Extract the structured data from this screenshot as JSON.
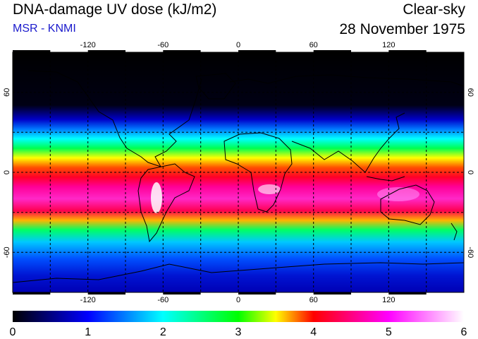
{
  "header": {
    "title": "DNA-damage UV dose (kJ/m2)",
    "source": "MSR - KNMI",
    "sky_condition": "Clear-sky",
    "date": "28 November 1975"
  },
  "map": {
    "projection": "equirectangular",
    "lon_range": [
      -180,
      180
    ],
    "lat_range": [
      -90,
      90
    ],
    "lon_ticks": [
      "-120",
      "-60",
      "0",
      "60",
      "120"
    ],
    "lat_ticks_left": [
      "60",
      "0",
      "-60"
    ],
    "lat_ticks_right": [
      "60",
      "0",
      "-60"
    ],
    "grid": "dashed, every 30 degrees",
    "coastlines": true
  },
  "colorbar": {
    "min": 0,
    "max": 6,
    "labels": [
      "0",
      "1",
      "2",
      "3",
      "4",
      "5",
      "6"
    ],
    "colors": [
      "#000000",
      "#0000ff",
      "#00ffff",
      "#00ff00",
      "#ffff00",
      "#ff0000",
      "#ff00ff",
      "#ffffff"
    ]
  }
}
